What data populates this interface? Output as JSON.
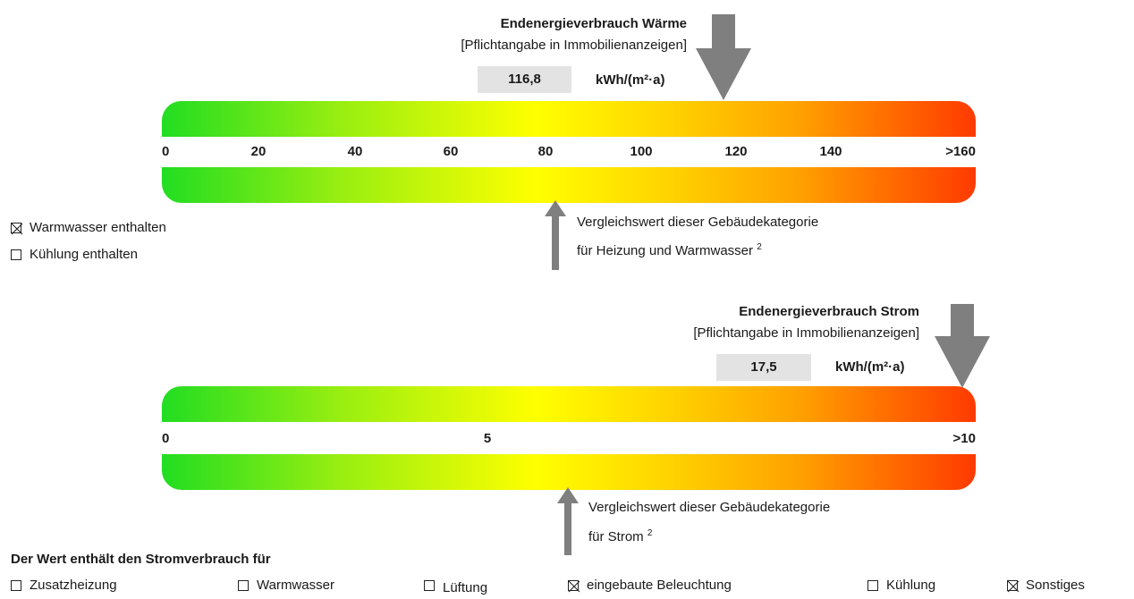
{
  "heat": {
    "title": "Endenergieverbrauch Wärme",
    "subtitle": "[Pflichtangabe in Immobilienanzeigen]",
    "value": "116,8",
    "unit": "kWh/(m²·a)",
    "scale_labels": [
      "0",
      "20",
      "40",
      "60",
      "80",
      "100",
      "120",
      "140",
      ">160"
    ],
    "scale_max": 160,
    "consumption_value": 116.8,
    "comparison_value": 82,
    "comparison_line1": "Vergleichswert dieser Gebäudekategorie",
    "comparison_line2": "für Heizung und Warmwasser",
    "comparison_sup": "2"
  },
  "heat_options": [
    {
      "label": "Warmwasser enthalten",
      "checked": true
    },
    {
      "label": "Kühlung enthalten",
      "checked": false
    }
  ],
  "power": {
    "title": "Endenergieverbrauch Strom",
    "subtitle": "[Pflichtangabe in Immobilienanzeigen]",
    "value": "17,5",
    "unit": "kWh/(m²·a)",
    "scale_labels": [
      "0",
      "5",
      ">10"
    ],
    "scale_max": 10,
    "consumption_value": 17.5,
    "comparison_value": 5.1,
    "comparison_line1": "Vergleichswert dieser Gebäudekategorie",
    "comparison_line2": "für Strom",
    "comparison_sup": "2"
  },
  "power_includes": {
    "heading": "Der Wert enthält den Stromverbrauch für",
    "items": [
      {
        "label": "Zusatzheizung",
        "checked": false
      },
      {
        "label": "Warmwasser",
        "checked": false
      },
      {
        "label": "Lüftung",
        "checked": false
      },
      {
        "label": "eingebaute Beleuchtung",
        "checked": true
      },
      {
        "label": "Kühlung",
        "checked": false
      },
      {
        "label": "Sonstiges",
        "checked": true
      }
    ]
  },
  "colors": {
    "arrow": "#7f7f7f",
    "value_box": "#e3e3e3",
    "gradient_start": "#22dd22",
    "gradient_end": "#ff3a00"
  }
}
